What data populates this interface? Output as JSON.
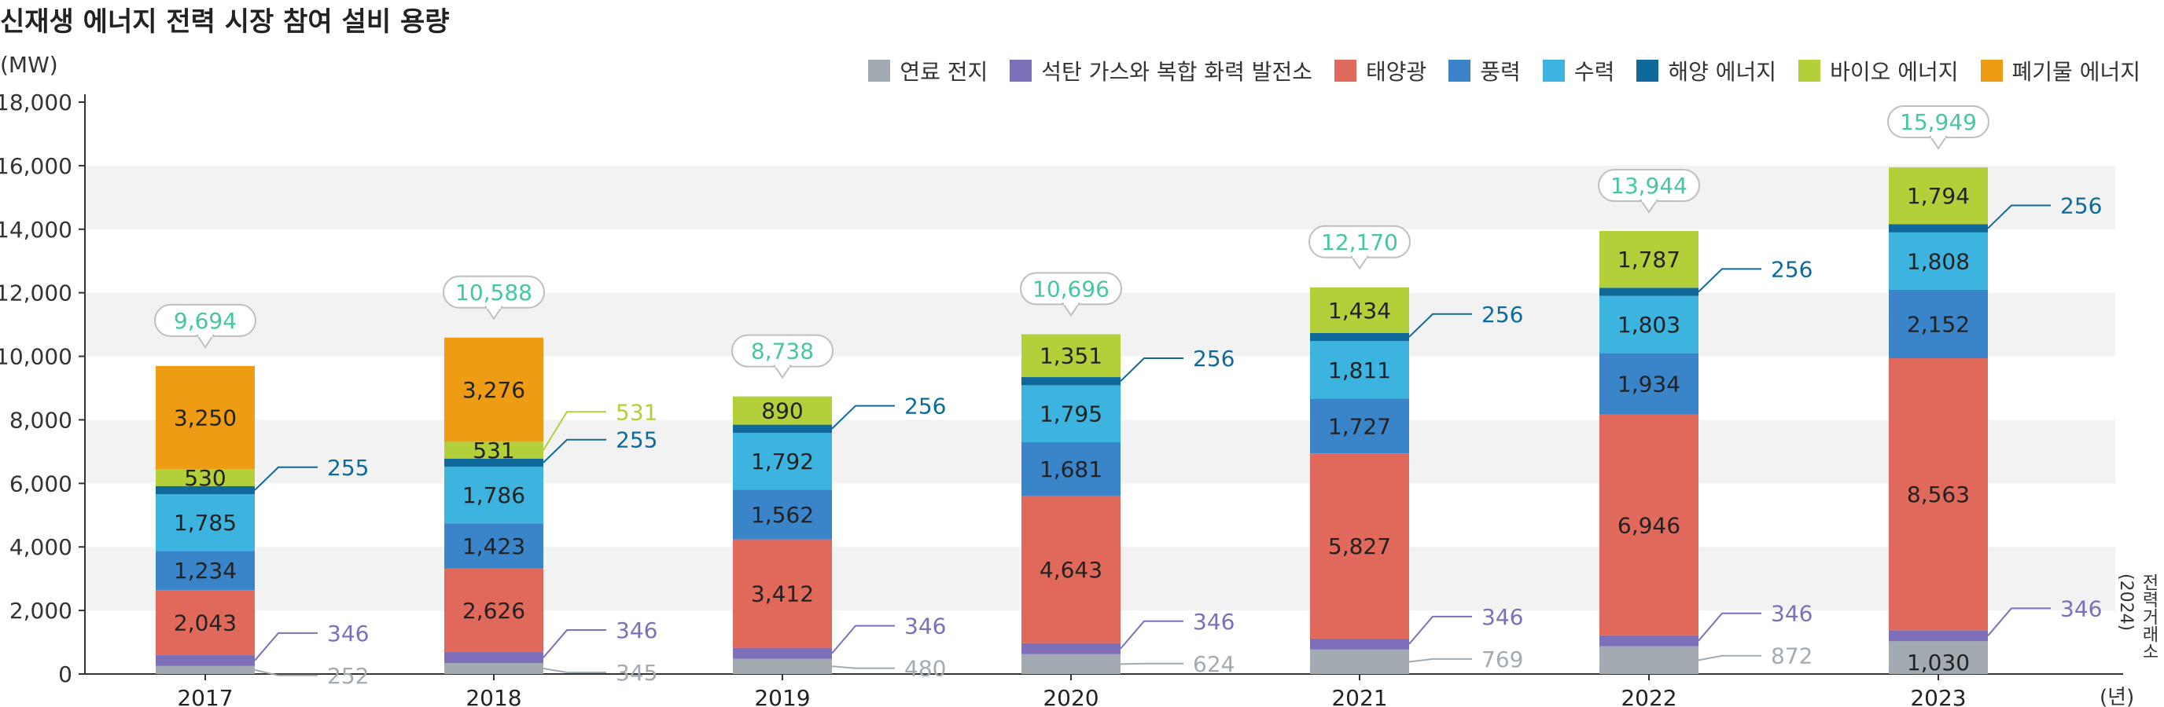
{
  "title": "신재생 에너지 전력 시장 참여 설비 용량",
  "unit": "(MW)",
  "x_unit": "(년)",
  "source": "전력거래소(2024)",
  "legend": [
    {
      "name": "연료 전지",
      "color": "#a3abb2"
    },
    {
      "name": "석탄 가스와 복합 화력 발전소",
      "color": "#7e6fba"
    },
    {
      "name": "태양광",
      "color": "#e0695b"
    },
    {
      "name": "풍력",
      "color": "#3a84c9"
    },
    {
      "name": "수력",
      "color": "#3db3e0"
    },
    {
      "name": "해양 에너지",
      "color": "#0f6a9b"
    },
    {
      "name": "바이오 에너지",
      "color": "#b3cf3a"
    },
    {
      "name": "폐기물 에너지",
      "color": "#ee9c13"
    }
  ],
  "chart_data": {
    "type": "bar",
    "stacked": true,
    "categories": [
      "2017",
      "2018",
      "2019",
      "2020",
      "2021",
      "2022",
      "2023"
    ],
    "ylim": [
      0,
      18000
    ],
    "yticks": [
      "0",
      "2,000",
      "4,000",
      "6,000",
      "8,000",
      "10,000",
      "12,000",
      "14,000",
      "16,000",
      "18,000"
    ],
    "ytick_values": [
      0,
      2000,
      4000,
      6000,
      8000,
      10000,
      12000,
      14000,
      16000,
      18000
    ],
    "series": [
      {
        "name": "연료 전지",
        "values": [
          252,
          345,
          480,
          624,
          769,
          872,
          1030
        ],
        "labels": [
          "252",
          "345",
          "480",
          "624",
          "769",
          "872",
          "1,030"
        ]
      },
      {
        "name": "석탄 가스와 복합 화력 발전소",
        "values": [
          346,
          346,
          346,
          346,
          346,
          346,
          346
        ],
        "labels": [
          "346",
          "346",
          "346",
          "346",
          "346",
          "346",
          "346"
        ]
      },
      {
        "name": "태양광",
        "values": [
          2043,
          2626,
          3412,
          4643,
          5827,
          6946,
          8563
        ],
        "labels": [
          "2,043",
          "2,626",
          "3,412",
          "4,643",
          "5,827",
          "6,946",
          "8,563"
        ]
      },
      {
        "name": "풍력",
        "values": [
          1234,
          1423,
          1562,
          1681,
          1727,
          1934,
          2152
        ],
        "labels": [
          "1,234",
          "1,423",
          "1,562",
          "1,681",
          "1,727",
          "1,934",
          "2,152"
        ]
      },
      {
        "name": "수력",
        "values": [
          1785,
          1786,
          1792,
          1795,
          1811,
          1803,
          1808
        ],
        "labels": [
          "1,785",
          "1,786",
          "1,792",
          "1,795",
          "1,811",
          "1,803",
          "1,808"
        ]
      },
      {
        "name": "해양 에너지",
        "values": [
          255,
          255,
          256,
          256,
          256,
          256,
          256
        ],
        "labels": [
          "255",
          "255",
          "256",
          "256",
          "256",
          "256",
          "256"
        ]
      },
      {
        "name": "바이오 에너지",
        "values": [
          530,
          531,
          890,
          1351,
          1434,
          1787,
          1794
        ],
        "labels": [
          "530",
          "531",
          "890",
          "1,351",
          "1,434",
          "1,787",
          "1,794"
        ]
      },
      {
        "name": "폐기물 에너지",
        "values": [
          3250,
          3276,
          0,
          0,
          0,
          0,
          0
        ],
        "labels": [
          "3,250",
          "3,276",
          "",
          "",
          "",
          "",
          ""
        ]
      }
    ],
    "totals": [
      9694,
      10588,
      8738,
      10696,
      12170,
      13944,
      15949
    ],
    "total_labels": [
      "9,694",
      "10,588",
      "8,738",
      "10,696",
      "12,170",
      "13,944",
      "15,949"
    ],
    "grid": "alternating horizontal bands",
    "legend_position": "top-right"
  }
}
